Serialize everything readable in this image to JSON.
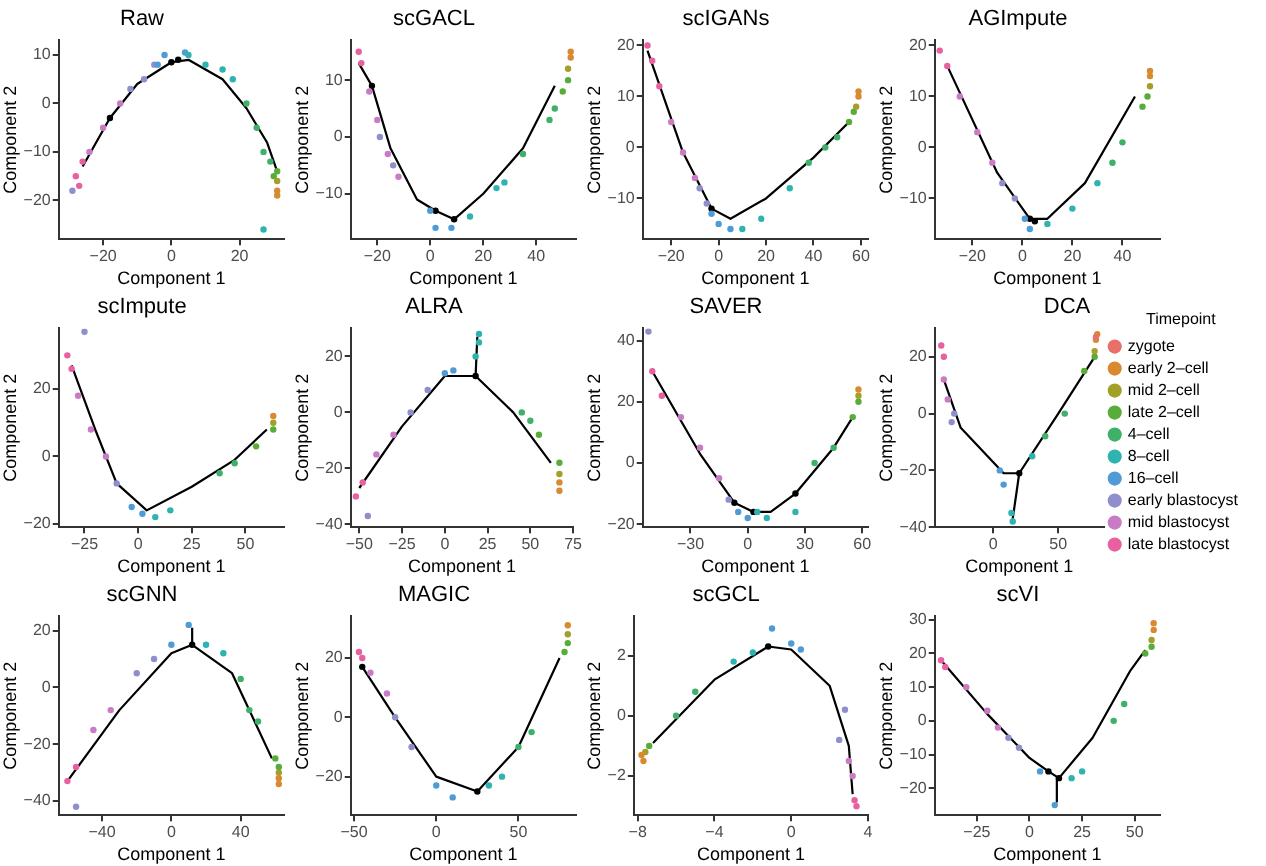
{
  "chart_data": [
    {
      "type": "scatter",
      "title": "Raw",
      "xlabel": "Component 1",
      "ylabel": "Component 2",
      "marker": "circle",
      "xlim": [
        -33,
        33
      ],
      "xticks": [
        -20,
        0,
        20
      ],
      "ylim": [
        -28,
        13
      ],
      "yticks": [
        -20,
        -10,
        0,
        10
      ],
      "series": [
        {
          "color": "#d98a30",
          "x": [
            31,
            31
          ],
          "values": [
            -18,
            -19
          ]
        },
        {
          "color": "#a3a02a",
          "x": [
            31
          ],
          "values": [
            -16
          ]
        },
        {
          "color": "#58ad3a",
          "x": [
            30,
            31
          ],
          "values": [
            -15,
            -14
          ]
        },
        {
          "color": "#3fb06a",
          "x": [
            22,
            25,
            27,
            29
          ],
          "values": [
            0,
            -5,
            -10,
            -12
          ]
        },
        {
          "color": "#2fb3b0",
          "x": [
            5,
            10,
            15,
            18,
            27
          ],
          "values": [
            10,
            8,
            7,
            5,
            -26
          ]
        },
        {
          "color": "#4f9bd6",
          "x": [
            -4,
            -2,
            4
          ],
          "values": [
            8,
            10,
            10.5
          ]
        },
        {
          "color": "#8f8fcc",
          "x": [
            -29,
            -12,
            -8,
            -5
          ],
          "values": [
            -18,
            3,
            5,
            8
          ]
        },
        {
          "color": "#c97bc5",
          "x": [
            -24,
            -20,
            -15
          ],
          "values": [
            -10,
            -5,
            0
          ]
        },
        {
          "color": "#e8609f",
          "x": [
            -28,
            -27,
            -26
          ],
          "values": [
            -15,
            -17,
            -12
          ]
        },
        {
          "type": "line",
          "marker": "none",
          "color": "#000000",
          "x": [
            -26,
            -18,
            -10,
            0,
            5,
            15,
            22,
            28,
            31
          ],
          "values": [
            -13,
            -3,
            4,
            8.5,
            9,
            5,
            -1,
            -8,
            -14
          ]
        },
        {
          "color": "#000000",
          "x": [
            -18,
            0,
            2
          ],
          "values": [
            -3,
            8.5,
            9
          ]
        }
      ]
    },
    {
      "type": "scatter",
      "title": "scGACL",
      "xlabel": "Component 1",
      "ylabel": "Component 2",
      "marker": "circle",
      "xlim": [
        -30,
        55
      ],
      "xticks": [
        -20,
        0,
        20,
        40
      ],
      "ylim": [
        -18,
        17
      ],
      "yticks": [
        -10,
        0,
        10
      ],
      "series": [
        {
          "color": "#d98a30",
          "x": [
            53,
            53
          ],
          "values": [
            14,
            15
          ]
        },
        {
          "color": "#a3a02a",
          "x": [
            52
          ],
          "values": [
            12
          ]
        },
        {
          "color": "#58ad3a",
          "x": [
            50,
            52
          ],
          "values": [
            8,
            10
          ]
        },
        {
          "color": "#3fb06a",
          "x": [
            35,
            45,
            47
          ],
          "values": [
            -3,
            3,
            5
          ]
        },
        {
          "color": "#2fb3b0",
          "x": [
            15,
            25,
            28
          ],
          "values": [
            -14,
            -9,
            -8
          ]
        },
        {
          "color": "#4f9bd6",
          "x": [
            0,
            2,
            8
          ],
          "values": [
            -13,
            -16,
            -16
          ]
        },
        {
          "color": "#8f8fcc",
          "x": [
            -19,
            -14
          ],
          "values": [
            0,
            -5
          ]
        },
        {
          "color": "#c97bc5",
          "x": [
            -23,
            -20,
            -16,
            -12
          ],
          "values": [
            8,
            3,
            -3,
            -7
          ]
        },
        {
          "color": "#e8609f",
          "x": [
            -27,
            -26
          ],
          "values": [
            15,
            13
          ]
        },
        {
          "type": "line",
          "marker": "none",
          "color": "#000000",
          "x": [
            -27,
            -22,
            -15,
            -5,
            2,
            9,
            20,
            35,
            47
          ],
          "values": [
            13,
            9,
            -2,
            -11,
            -13,
            -14.5,
            -10,
            -2,
            9
          ]
        },
        {
          "color": "#000000",
          "x": [
            -22,
            2,
            9
          ],
          "values": [
            9,
            -13,
            -14.5
          ]
        }
      ]
    },
    {
      "type": "scatter",
      "title": "scIGANs",
      "xlabel": "Component 1",
      "ylabel": "Component 2",
      "marker": "circle",
      "xlim": [
        -32,
        63
      ],
      "xticks": [
        -20,
        0,
        20,
        40,
        60
      ],
      "ylim": [
        -18,
        21
      ],
      "yticks": [
        -10,
        0,
        10,
        20
      ],
      "series": [
        {
          "color": "#d98a30",
          "x": [
            59,
            59
          ],
          "values": [
            10,
            11
          ]
        },
        {
          "color": "#a3a02a",
          "x": [
            58
          ],
          "values": [
            8
          ]
        },
        {
          "color": "#58ad3a",
          "x": [
            55,
            57
          ],
          "values": [
            5,
            7
          ]
        },
        {
          "color": "#3fb06a",
          "x": [
            38,
            45,
            50
          ],
          "values": [
            -3,
            0,
            2
          ]
        },
        {
          "color": "#2fb3b0",
          "x": [
            10,
            18,
            30
          ],
          "values": [
            -16,
            -14,
            -8
          ]
        },
        {
          "color": "#4f9bd6",
          "x": [
            -3,
            0,
            5
          ],
          "values": [
            -13,
            -15,
            -16
          ]
        },
        {
          "color": "#8f8fcc",
          "x": [
            -8,
            -5
          ],
          "values": [
            -8,
            -11
          ]
        },
        {
          "color": "#c97bc5",
          "x": [
            -20,
            -15,
            -10
          ],
          "values": [
            5,
            -1,
            -6
          ]
        },
        {
          "color": "#e8609f",
          "x": [
            -30,
            -28,
            -25
          ],
          "values": [
            20,
            17,
            12
          ]
        },
        {
          "type": "line",
          "marker": "none",
          "color": "#000000",
          "x": [
            -30,
            -15,
            -3,
            5,
            20,
            40,
            55
          ],
          "values": [
            19,
            -1,
            -12,
            -14,
            -10,
            -2,
            5
          ]
        },
        {
          "color": "#000000",
          "x": [
            -3
          ],
          "values": [
            -12
          ]
        }
      ]
    },
    {
      "type": "scatter",
      "title": "AGImpute",
      "xlabel": "Component 1",
      "ylabel": "Component 2",
      "marker": "circle",
      "xlim": [
        -35,
        55
      ],
      "xticks": [
        -20,
        0,
        20,
        40
      ],
      "ylim": [
        -18,
        21
      ],
      "yticks": [
        -10,
        0,
        10,
        20
      ],
      "series": [
        {
          "color": "#d98a30",
          "x": [
            51,
            51
          ],
          "values": [
            14,
            15
          ]
        },
        {
          "color": "#a3a02a",
          "x": [
            51
          ],
          "values": [
            12
          ]
        },
        {
          "color": "#58ad3a",
          "x": [
            48,
            50
          ],
          "values": [
            8,
            10
          ]
        },
        {
          "color": "#3fb06a",
          "x": [
            36,
            40
          ],
          "values": [
            -3,
            1
          ]
        },
        {
          "color": "#2fb3b0",
          "x": [
            10,
            20,
            30
          ],
          "values": [
            -15,
            -12,
            -7
          ]
        },
        {
          "color": "#4f9bd6",
          "x": [
            1,
            3
          ],
          "values": [
            -14,
            -16
          ]
        },
        {
          "color": "#8f8fcc",
          "x": [
            -8,
            -3
          ],
          "values": [
            -7,
            -10
          ]
        },
        {
          "color": "#c97bc5",
          "x": [
            -25,
            -18,
            -12
          ],
          "values": [
            10,
            3,
            -3
          ]
        },
        {
          "color": "#e8609f",
          "x": [
            -33,
            -30
          ],
          "values": [
            19,
            16
          ]
        },
        {
          "type": "line",
          "marker": "none",
          "color": "#000000",
          "x": [
            -30,
            -10,
            3,
            10,
            25,
            45
          ],
          "values": [
            16,
            -5,
            -14,
            -14,
            -7,
            10
          ]
        },
        {
          "color": "#000000",
          "x": [
            3,
            5
          ],
          "values": [
            -14,
            -14.5
          ]
        }
      ]
    },
    {
      "type": "scatter",
      "title": "scImpute",
      "xlabel": "Component 1",
      "ylabel": "Component 2",
      "marker": "circle",
      "xlim": [
        -37,
        68
      ],
      "xticks": [
        -25,
        0,
        25,
        50
      ],
      "ylim": [
        -21,
        38
      ],
      "yticks": [
        -20,
        0,
        20
      ],
      "series": [
        {
          "color": "#d98a30",
          "x": [
            63
          ],
          "values": [
            12
          ]
        },
        {
          "color": "#a3a02a",
          "x": [
            63
          ],
          "values": [
            10
          ]
        },
        {
          "color": "#58ad3a",
          "x": [
            55,
            63
          ],
          "values": [
            3,
            8
          ]
        },
        {
          "color": "#3fb06a",
          "x": [
            38,
            45
          ],
          "values": [
            -5,
            -2
          ]
        },
        {
          "color": "#2fb3b0",
          "x": [
            8,
            15
          ],
          "values": [
            -18,
            -16
          ]
        },
        {
          "color": "#4f9bd6",
          "x": [
            -3,
            2
          ],
          "values": [
            -15,
            -17
          ]
        },
        {
          "color": "#8f8fcc",
          "x": [
            -25,
            -10
          ],
          "values": [
            37,
            -8
          ]
        },
        {
          "color": "#c97bc5",
          "x": [
            -28,
            -22,
            -15
          ],
          "values": [
            18,
            8,
            0
          ]
        },
        {
          "color": "#e8609f",
          "x": [
            -33,
            -31
          ],
          "values": [
            30,
            26
          ]
        },
        {
          "type": "line",
          "marker": "none",
          "color": "#000000",
          "x": [
            -31,
            -20,
            -10,
            4,
            25,
            45,
            60
          ],
          "values": [
            27,
            8,
            -8,
            -16,
            -9,
            -1,
            8
          ]
        }
      ]
    },
    {
      "type": "scatter",
      "title": "ALRA",
      "xlabel": "Component 1",
      "ylabel": "Component 2",
      "marker": "circle",
      "xlim": [
        -55,
        75
      ],
      "xticks": [
        -50,
        -25,
        0,
        25,
        50,
        75
      ],
      "ylim": [
        -41,
        30
      ],
      "yticks": [
        -40,
        -20,
        0,
        20
      ],
      "series": [
        {
          "color": "#d98a30",
          "x": [
            67,
            67
          ],
          "values": [
            -25,
            -28
          ]
        },
        {
          "color": "#a3a02a",
          "x": [
            67
          ],
          "values": [
            -22
          ]
        },
        {
          "color": "#58ad3a",
          "x": [
            55,
            67
          ],
          "values": [
            -8,
            -18
          ]
        },
        {
          "color": "#3fb06a",
          "x": [
            45,
            50
          ],
          "values": [
            0,
            -3
          ]
        },
        {
          "color": "#2fb3b0",
          "x": [
            18,
            20,
            20
          ],
          "values": [
            20,
            25,
            28
          ]
        },
        {
          "color": "#4f9bd6",
          "x": [
            0,
            5
          ],
          "values": [
            14,
            15
          ]
        },
        {
          "color": "#8f8fcc",
          "x": [
            -45,
            -20,
            -10
          ],
          "values": [
            -37,
            0,
            8
          ]
        },
        {
          "color": "#c97bc5",
          "x": [
            -40,
            -30
          ],
          "values": [
            -15,
            -8
          ]
        },
        {
          "color": "#e8609f",
          "x": [
            -52,
            -48
          ],
          "values": [
            -30,
            -25
          ]
        },
        {
          "type": "line",
          "marker": "none",
          "color": "#000000",
          "x": [
            -50,
            -25,
            0,
            18,
            40,
            62
          ],
          "values": [
            -27,
            -5,
            13,
            13,
            0,
            -18
          ]
        },
        {
          "type": "line",
          "marker": "none",
          "color": "#000000",
          "x": [
            18,
            19
          ],
          "values": [
            13,
            27
          ]
        },
        {
          "color": "#000000",
          "x": [
            18
          ],
          "values": [
            13
          ]
        }
      ]
    },
    {
      "type": "scatter",
      "title": "SAVER",
      "xlabel": "Component 1",
      "ylabel": "Component 2",
      "marker": "circle",
      "xlim": [
        -55,
        63
      ],
      "xticks": [
        -30,
        0,
        30,
        60
      ],
      "ylim": [
        -21,
        44
      ],
      "yticks": [
        -20,
        0,
        20,
        40
      ],
      "series": [
        {
          "color": "#d98a30",
          "x": [
            58
          ],
          "values": [
            24
          ]
        },
        {
          "color": "#a3a02a",
          "x": [
            58
          ],
          "values": [
            22
          ]
        },
        {
          "color": "#58ad3a",
          "x": [
            55,
            58
          ],
          "values": [
            15,
            20
          ]
        },
        {
          "color": "#3fb06a",
          "x": [
            35,
            45
          ],
          "values": [
            0,
            5
          ]
        },
        {
          "color": "#2fb3b0",
          "x": [
            5,
            10,
            25
          ],
          "values": [
            -16,
            -18,
            -16
          ]
        },
        {
          "color": "#4f9bd6",
          "x": [
            -5,
            0
          ],
          "values": [
            -16,
            -18
          ]
        },
        {
          "color": "#8f8fcc",
          "x": [
            -52,
            -10
          ],
          "values": [
            43,
            -12
          ]
        },
        {
          "color": "#c97bc5",
          "x": [
            -35,
            -25,
            -15
          ],
          "values": [
            15,
            5,
            -5
          ]
        },
        {
          "color": "#e8609f",
          "x": [
            -50,
            -45
          ],
          "values": [
            30,
            22
          ]
        },
        {
          "type": "line",
          "marker": "none",
          "color": "#000000",
          "x": [
            -50,
            -25,
            -7,
            3,
            12,
            25,
            45,
            55
          ],
          "values": [
            30,
            3,
            -13,
            -16,
            -16,
            -10,
            5,
            15
          ]
        },
        {
          "color": "#000000",
          "x": [
            -7,
            3,
            25
          ],
          "values": [
            -13,
            -16,
            -10
          ]
        }
      ]
    },
    {
      "type": "scatter",
      "title": "DCA",
      "xlabel": "Component 1",
      "ylabel": "Component 2",
      "legend": "right",
      "legend_title": "Timepoint",
      "marker": "circle",
      "xlim": [
        -45,
        85
      ],
      "xticks": [
        0,
        50
      ],
      "ylim": [
        -40,
        30
      ],
      "yticks": [
        -40,
        -20,
        0,
        20
      ],
      "series": [
        {
          "name": "zygote",
          "color": "#e8706a",
          "x": [
            79
          ],
          "values": [
            27
          ]
        },
        {
          "name": "early 2–cell",
          "color": "#d98a30",
          "x": [
            79,
            80
          ],
          "values": [
            26,
            28
          ]
        },
        {
          "name": "mid 2–cell",
          "color": "#a3a02a",
          "x": [
            78
          ],
          "values": [
            22
          ]
        },
        {
          "name": "late 2–cell",
          "color": "#58ad3a",
          "x": [
            70,
            78
          ],
          "values": [
            15,
            20
          ]
        },
        {
          "name": "4–cell",
          "color": "#3fb06a",
          "x": [
            40,
            55
          ],
          "values": [
            -8,
            0
          ]
        },
        {
          "name": "8–cell",
          "color": "#2fb3b0",
          "x": [
            14,
            15,
            30
          ],
          "values": [
            -35,
            -38,
            -15
          ]
        },
        {
          "name": "16–cell",
          "color": "#4f9bd6",
          "x": [
            5,
            8
          ],
          "values": [
            -20,
            -25
          ]
        },
        {
          "name": "early blastocyst",
          "color": "#8f8fcc",
          "x": [
            -30,
            -32
          ],
          "values": [
            0,
            -3
          ]
        },
        {
          "name": "mid blastocyst",
          "color": "#c97bc5",
          "x": [
            -38,
            -35
          ],
          "values": [
            12,
            5
          ]
        },
        {
          "name": "late blastocyst",
          "color": "#e8609f",
          "x": [
            -40,
            -38
          ],
          "values": [
            24,
            20
          ]
        },
        {
          "type": "line",
          "marker": "none",
          "color": "#000000",
          "x": [
            -38,
            -25,
            8,
            20,
            50,
            78
          ],
          "values": [
            12,
            -5,
            -21,
            -21,
            0,
            20
          ]
        },
        {
          "type": "line",
          "marker": "none",
          "color": "#000000",
          "x": [
            20,
            15
          ],
          "values": [
            -21,
            -37
          ]
        },
        {
          "color": "#000000",
          "x": [
            20
          ],
          "values": [
            -21
          ]
        }
      ]
    },
    {
      "type": "scatter",
      "title": "scGNN",
      "xlabel": "Component 1",
      "ylabel": "Component 2",
      "marker": "circle",
      "xlim": [
        -65,
        65
      ],
      "xticks": [
        -40,
        0,
        40
      ],
      "ylim": [
        -45,
        25
      ],
      "yticks": [
        -40,
        -20,
        0,
        20
      ],
      "series": [
        {
          "color": "#d98a30",
          "x": [
            62,
            62
          ],
          "values": [
            -32,
            -34
          ]
        },
        {
          "color": "#a3a02a",
          "x": [
            62
          ],
          "values": [
            -30
          ]
        },
        {
          "color": "#58ad3a",
          "x": [
            60,
            62
          ],
          "values": [
            -25,
            -28
          ]
        },
        {
          "color": "#3fb06a",
          "x": [
            40,
            45,
            50
          ],
          "values": [
            3,
            -8,
            -12
          ]
        },
        {
          "color": "#2fb3b0",
          "x": [
            20,
            30
          ],
          "values": [
            15,
            12
          ]
        },
        {
          "color": "#4f9bd6",
          "x": [
            0,
            10
          ],
          "values": [
            15,
            22
          ]
        },
        {
          "color": "#8f8fcc",
          "x": [
            -55,
            -20,
            -10
          ],
          "values": [
            -42,
            5,
            10
          ]
        },
        {
          "color": "#c97bc5",
          "x": [
            -45,
            -35
          ],
          "values": [
            -15,
            -8
          ]
        },
        {
          "color": "#e8609f",
          "x": [
            -60,
            -55
          ],
          "values": [
            -33,
            -28
          ]
        },
        {
          "type": "line",
          "marker": "none",
          "color": "#000000",
          "x": [
            -60,
            -30,
            0,
            12,
            35,
            58
          ],
          "values": [
            -33,
            -8,
            12,
            15,
            5,
            -25
          ]
        },
        {
          "type": "line",
          "marker": "none",
          "color": "#000000",
          "x": [
            12,
            12
          ],
          "values": [
            15,
            21
          ]
        },
        {
          "color": "#000000",
          "x": [
            12
          ],
          "values": [
            15
          ]
        }
      ]
    },
    {
      "type": "scatter",
      "title": "MAGIC",
      "xlabel": "Component 1",
      "ylabel": "Component 2",
      "marker": "circle",
      "xlim": [
        -52,
        85
      ],
      "xticks": [
        -50,
        0,
        50
      ],
      "ylim": [
        -33,
        34
      ],
      "yticks": [
        -20,
        0,
        20
      ],
      "series": [
        {
          "color": "#d98a30",
          "x": [
            80
          ],
          "values": [
            31
          ]
        },
        {
          "color": "#a3a02a",
          "x": [
            80
          ],
          "values": [
            28
          ]
        },
        {
          "color": "#58ad3a",
          "x": [
            78,
            80
          ],
          "values": [
            22,
            25
          ]
        },
        {
          "color": "#3fb06a",
          "x": [
            50,
            58
          ],
          "values": [
            -10,
            -5
          ]
        },
        {
          "color": "#2fb3b0",
          "x": [
            32,
            40
          ],
          "values": [
            -23,
            -20
          ]
        },
        {
          "color": "#4f9bd6",
          "x": [
            0,
            10
          ],
          "values": [
            -23,
            -27
          ]
        },
        {
          "color": "#8f8fcc",
          "x": [
            -25,
            -15
          ],
          "values": [
            0,
            -10
          ]
        },
        {
          "color": "#c97bc5",
          "x": [
            -40,
            -30
          ],
          "values": [
            15,
            8
          ]
        },
        {
          "color": "#e8609f",
          "x": [
            -47,
            -45
          ],
          "values": [
            22,
            20
          ]
        },
        {
          "type": "line",
          "marker": "none",
          "color": "#000000",
          "x": [
            -45,
            -25,
            0,
            25,
            50,
            75
          ],
          "values": [
            17,
            0,
            -20,
            -25,
            -10,
            20
          ]
        },
        {
          "color": "#000000",
          "x": [
            -45,
            25
          ],
          "values": [
            17,
            -25
          ]
        }
      ]
    },
    {
      "type": "scatter",
      "title": "scGCL",
      "xlabel": "Component 1",
      "ylabel": "Component 2",
      "marker": "circle",
      "xlim": [
        -8.2,
        4
      ],
      "xticks": [
        -8,
        -4,
        0,
        4
      ],
      "ylim": [
        -3.3,
        3.3
      ],
      "yticks": [
        -2,
        0,
        2
      ],
      "series": [
        {
          "color": "#d98a30",
          "x": [
            -7.7,
            -7.8
          ],
          "values": [
            -1.5,
            -1.3
          ]
        },
        {
          "color": "#a3a02a",
          "x": [
            -7.6
          ],
          "values": [
            -1.2
          ]
        },
        {
          "color": "#58ad3a",
          "x": [
            -7.4
          ],
          "values": [
            -1
          ]
        },
        {
          "color": "#3fb06a",
          "x": [
            -6,
            -5
          ],
          "values": [
            0,
            0.8
          ]
        },
        {
          "color": "#2fb3b0",
          "x": [
            -3,
            -2
          ],
          "values": [
            1.8,
            2.1
          ]
        },
        {
          "color": "#4f9bd6",
          "x": [
            -1,
            0,
            0.5
          ],
          "values": [
            2.9,
            2.4,
            2.2
          ]
        },
        {
          "color": "#8f8fcc",
          "x": [
            2.8,
            2.5
          ],
          "values": [
            0.2,
            -0.8
          ]
        },
        {
          "color": "#c97bc5",
          "x": [
            3,
            3.2
          ],
          "values": [
            -1.5,
            -2
          ]
        },
        {
          "color": "#e8609f",
          "x": [
            3.3,
            3.4
          ],
          "values": [
            -2.8,
            -3
          ]
        },
        {
          "type": "line",
          "marker": "none",
          "color": "#000000",
          "x": [
            -7.2,
            -4,
            -1.2,
            0,
            2,
            3,
            3.2
          ],
          "values": [
            -0.9,
            1.2,
            2.3,
            2.2,
            1,
            -1,
            -2.6
          ]
        },
        {
          "color": "#000000",
          "x": [
            -1.2
          ],
          "values": [
            2.3
          ]
        }
      ]
    },
    {
      "type": "scatter",
      "title": "scVI",
      "xlabel": "Component 1",
      "ylabel": "Component 2",
      "marker": "circle",
      "xlim": [
        -45,
        62
      ],
      "xticks": [
        -25,
        0,
        25,
        50
      ],
      "ylim": [
        -28,
        31
      ],
      "yticks": [
        -20,
        -10,
        0,
        10,
        20,
        30
      ],
      "series": [
        {
          "color": "#d98a30",
          "x": [
            59,
            59
          ],
          "values": [
            27,
            29
          ]
        },
        {
          "color": "#a3a02a",
          "x": [
            58
          ],
          "values": [
            24
          ]
        },
        {
          "color": "#58ad3a",
          "x": [
            55,
            58
          ],
          "values": [
            20,
            22
          ]
        },
        {
          "color": "#3fb06a",
          "x": [
            40,
            45
          ],
          "values": [
            0,
            5
          ]
        },
        {
          "color": "#2fb3b0",
          "x": [
            20,
            25
          ],
          "values": [
            -17,
            -15
          ]
        },
        {
          "color": "#4f9bd6",
          "x": [
            5,
            12
          ],
          "values": [
            -15,
            -25
          ]
        },
        {
          "color": "#8f8fcc",
          "x": [
            -10,
            -5
          ],
          "values": [
            -5,
            -8
          ]
        },
        {
          "color": "#c97bc5",
          "x": [
            -30,
            -20,
            -15
          ],
          "values": [
            10,
            3,
            -2
          ]
        },
        {
          "color": "#e8609f",
          "x": [
            -42,
            -40
          ],
          "values": [
            18,
            16
          ]
        },
        {
          "type": "line",
          "marker": "none",
          "color": "#000000",
          "x": [
            -42,
            -20,
            0,
            9,
            14,
            30,
            48,
            55
          ],
          "values": [
            18,
            2,
            -11,
            -15,
            -17,
            -5,
            15,
            21
          ]
        },
        {
          "type": "line",
          "marker": "none",
          "color": "#000000",
          "x": [
            13,
            13
          ],
          "values": [
            -17,
            -24
          ]
        },
        {
          "color": "#000000",
          "x": [
            9,
            14
          ],
          "values": [
            -15,
            -17
          ]
        }
      ]
    }
  ]
}
